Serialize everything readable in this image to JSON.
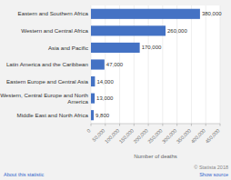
{
  "chart_data": {
    "type": "bar",
    "orientation": "horizontal",
    "categories": [
      "Middle East and North Africa",
      "Western, Central Europe and North\nAmerica",
      "Eastern Europe and Central Asia",
      "Latin America and the Caribbean",
      "Asia and Pacific",
      "Western and Central Africa",
      "Eastern and Southern Africa"
    ],
    "values": [
      9800,
      13000,
      14000,
      47000,
      170000,
      260000,
      380000
    ],
    "value_labels": [
      "9,800",
      "13,000",
      "14,000",
      "47,000",
      "170,000",
      "260,000",
      "380,000"
    ],
    "data_labels": true,
    "color": "#4472C4",
    "xlabel": "Number of deaths",
    "xlim": [
      0,
      450000
    ],
    "xticks": [
      0,
      {
        "value": 50000,
        "label": "50,000"
      },
      {
        "value": 100000,
        "label": "100,000"
      },
      {
        "value": 150000,
        "label": "150,000"
      },
      {
        "value": 200000,
        "label": "200,000"
      },
      {
        "value": 250000,
        "label": "250,000"
      },
      {
        "value": 300000,
        "label": "300,000"
      },
      {
        "value": 350000,
        "label": "350,000"
      },
      {
        "value": 400000,
        "label": "400,000"
      },
      {
        "value": 450000,
        "label": "450,000"
      }
    ],
    "grid": true,
    "annotations": [
      "About this statistic",
      "Show source",
      "© Statista 2018"
    ]
  }
}
